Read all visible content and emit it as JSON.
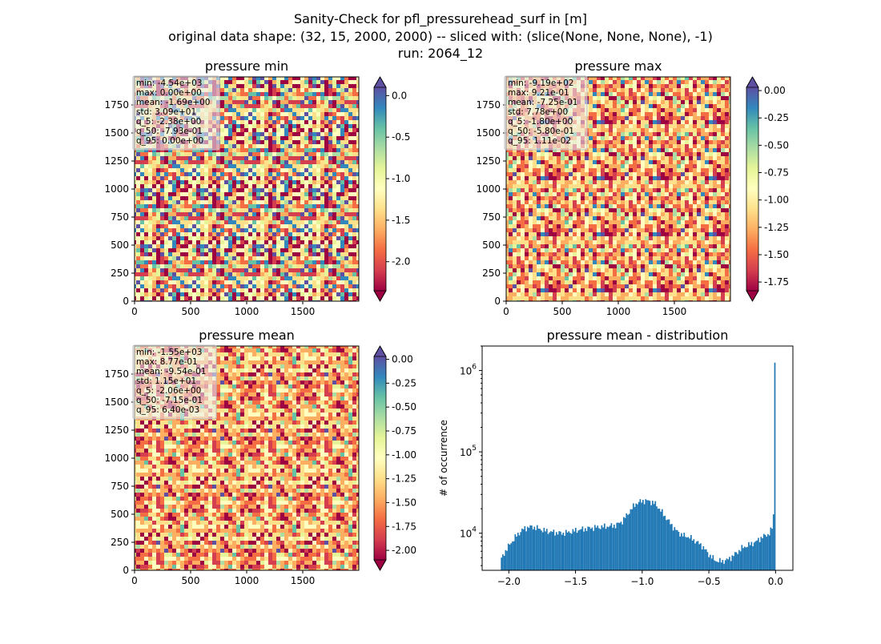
{
  "figure": {
    "title_lines": [
      "Sanity-Check for pfl_pressurehead_surf in [m]",
      "original data shape: (32, 15, 2000, 2000) -- sliced with: (slice(None, None, None), -1)",
      "run: 2064_12"
    ]
  },
  "colors": {
    "spectral": [
      "#9e0142",
      "#d53e4f",
      "#f46d43",
      "#fdae61",
      "#fee08b",
      "#ffffbf",
      "#e6f598",
      "#abdda4",
      "#66c2a5",
      "#3288bd",
      "#5e4fa2"
    ],
    "hist_bar": "#1f77b4",
    "stats_box_bg": "#ebebeb"
  },
  "chart_data": [
    {
      "type": "heatmap",
      "title": "pressure min",
      "colormap": "Spectral",
      "x_ticks": [
        "0",
        "500",
        "1000",
        "1500"
      ],
      "y_ticks": [
        "0",
        "250",
        "500",
        "750",
        "1000",
        "1250",
        "1500",
        "1750"
      ],
      "xlim": [
        0,
        2000
      ],
      "ylim": [
        0,
        2000
      ],
      "color_range": [
        -2.35,
        0.1
      ],
      "colorbar_ticks": [
        "0.0",
        "-0.5",
        "-1.0",
        "-1.5",
        "-2.0"
      ],
      "colorbar_tick_values": [
        0.0,
        -0.5,
        -1.0,
        -1.5,
        -2.0
      ],
      "colorbar_extend": "both",
      "stats": [
        "min: -4.54e+03",
        "max: 0.00e+00",
        "mean: -1.69e+00",
        "std: 3.09e+01",
        "q_5: -2.38e+00",
        "q_50: -7.93e-01",
        "q_95: 0.00e+00"
      ]
    },
    {
      "type": "heatmap",
      "title": "pressure max",
      "colormap": "Spectral",
      "x_ticks": [
        "0",
        "500",
        "1000",
        "1500"
      ],
      "y_ticks": [
        "0",
        "250",
        "500",
        "750",
        "1000",
        "1250",
        "1500",
        "1750"
      ],
      "xlim": [
        0,
        2000
      ],
      "ylim": [
        0,
        2000
      ],
      "color_range": [
        -1.83,
        0.03
      ],
      "colorbar_ticks": [
        "0.00",
        "-0.25",
        "-0.50",
        "-0.75",
        "-1.00",
        "-1.25",
        "-1.50",
        "-1.75"
      ],
      "colorbar_tick_values": [
        0.0,
        -0.25,
        -0.5,
        -0.75,
        -1.0,
        -1.25,
        -1.5,
        -1.75
      ],
      "colorbar_extend": "both",
      "stats": [
        "min: -9.19e+02",
        "max: 9.21e-01",
        "mean: -7.25e-01",
        "std: 7.78e+00",
        "q_5: -1.80e+00",
        "q_50: -5.80e-01",
        "q_95: 1.11e-02"
      ]
    },
    {
      "type": "heatmap",
      "title": "pressure mean",
      "colormap": "Spectral",
      "x_ticks": [
        "0",
        "500",
        "1000",
        "1500"
      ],
      "y_ticks": [
        "0",
        "250",
        "500",
        "750",
        "1000",
        "1250",
        "1500",
        "1750"
      ],
      "xlim": [
        0,
        2000
      ],
      "ylim": [
        0,
        2000
      ],
      "color_range": [
        -2.1,
        0.03
      ],
      "colorbar_ticks": [
        "0.00",
        "-0.25",
        "-0.50",
        "-0.75",
        "-1.00",
        "-1.25",
        "-1.50",
        "-1.75",
        "-2.00"
      ],
      "colorbar_tick_values": [
        0.0,
        -0.25,
        -0.5,
        -0.75,
        -1.0,
        -1.25,
        -1.5,
        -1.75,
        -2.0
      ],
      "colorbar_extend": "both",
      "stats": [
        "min: -1.55e+03",
        "max: 8.77e-01",
        "mean: -9.54e-01",
        "std: 1.15e+01",
        "q_5: -2.06e+00",
        "q_50: -7.15e-01",
        "q_95: 6.40e-03"
      ]
    },
    {
      "type": "bar",
      "title": "pressure mean - distribution",
      "ylabel": "# of occurrence",
      "y_scale": "log",
      "xlim": [
        -2.2,
        0.13
      ],
      "ylim": [
        3500,
        2000000
      ],
      "x_ticks": [
        "−2.0",
        "−1.5",
        "−1.0",
        "−0.5",
        "0.0"
      ],
      "x_tick_values": [
        -2.0,
        -1.5,
        -1.0,
        -0.5,
        0.0
      ],
      "y_ticks": [
        "10^4",
        "10^5",
        "10^6"
      ],
      "y_tick_values": [
        10000,
        100000,
        1000000
      ],
      "bins": {
        "start": -2.06,
        "end": 0.0,
        "count": 200
      },
      "x": [
        -2.06,
        -2.04,
        -2.0,
        -1.95,
        -1.9,
        -1.85,
        -1.8,
        -1.75,
        -1.7,
        -1.65,
        -1.6,
        -1.55,
        -1.5,
        -1.45,
        -1.4,
        -1.35,
        -1.3,
        -1.25,
        -1.2,
        -1.15,
        -1.1,
        -1.05,
        -1.0,
        -0.95,
        -0.9,
        -0.85,
        -0.8,
        -0.75,
        -0.7,
        -0.65,
        -0.6,
        -0.55,
        -0.5,
        -0.45,
        -0.4,
        -0.35,
        -0.3,
        -0.25,
        -0.2,
        -0.15,
        -0.1,
        -0.05,
        -0.02,
        -0.01,
        0.0
      ],
      "y": [
        4600,
        5500,
        7000,
        9000,
        11000,
        12000,
        11800,
        11000,
        10500,
        10200,
        10000,
        10300,
        10800,
        11200,
        11500,
        11800,
        12000,
        12200,
        12500,
        14000,
        18000,
        23000,
        25000,
        25000,
        23000,
        18000,
        14000,
        11000,
        9500,
        9000,
        8000,
        7000,
        5500,
        4600,
        4500,
        4800,
        5600,
        6600,
        7200,
        7800,
        9000,
        9800,
        12000,
        26000,
        1250000
      ]
    }
  ]
}
